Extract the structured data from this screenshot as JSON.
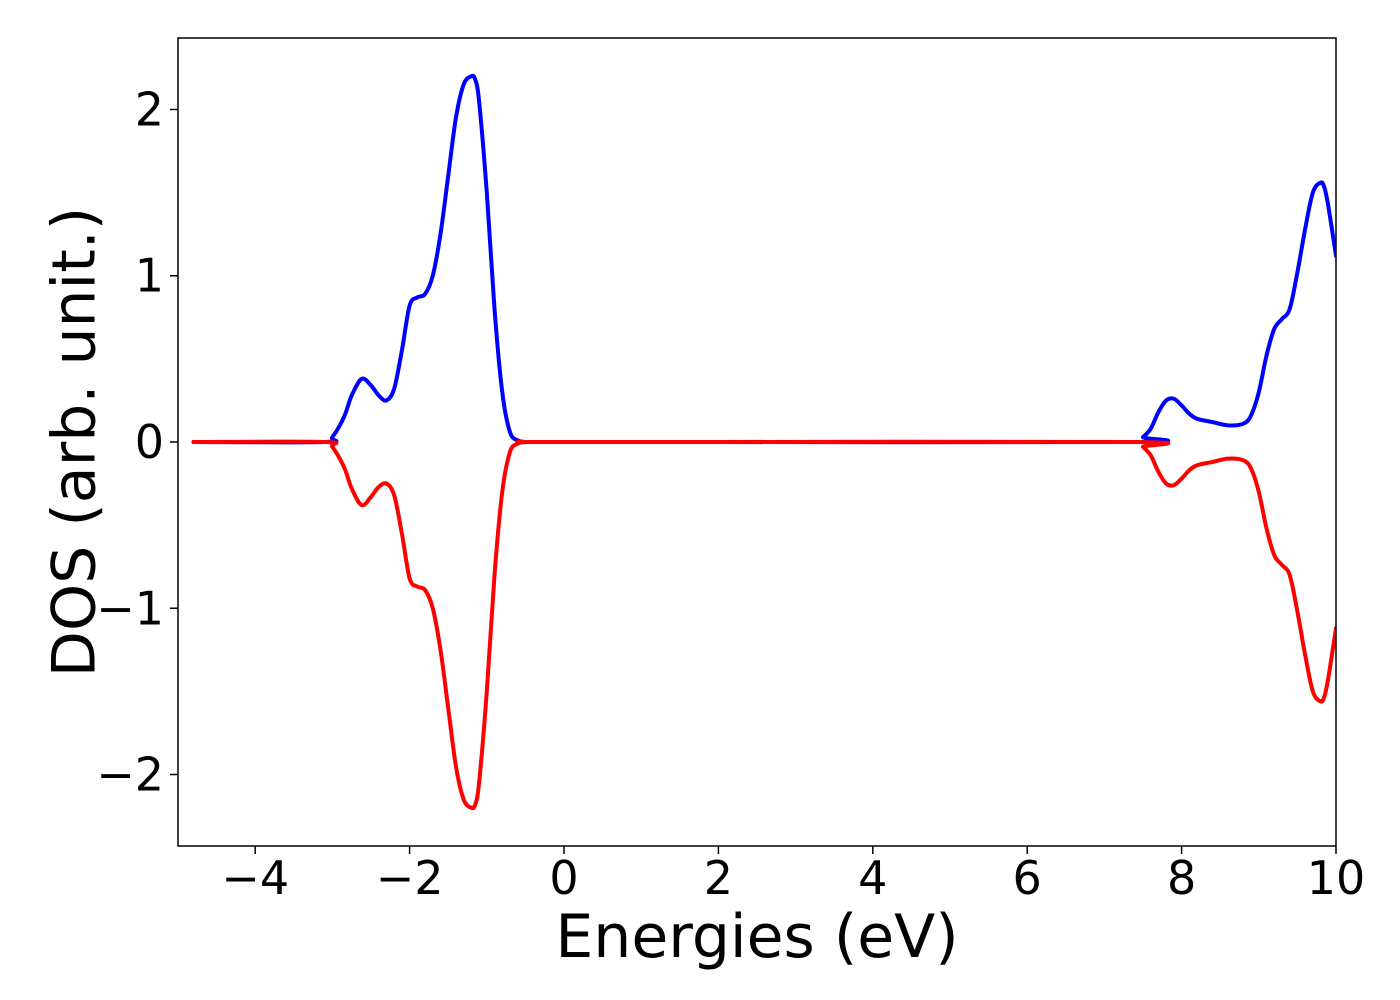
{
  "chart_data": {
    "type": "line",
    "title": "",
    "xlabel": "Energies (eV)",
    "ylabel": "DOS (arb. unit.)",
    "xlim": [
      -5,
      10
    ],
    "ylim": [
      -2.43,
      2.43
    ],
    "x_ticks": [
      -4,
      -2,
      0,
      2,
      4,
      6,
      8,
      10
    ],
    "x_tick_labels": [
      "−4",
      "−2",
      "0",
      "2",
      "4",
      "6",
      "8",
      "10"
    ],
    "y_ticks": [
      -2,
      -1,
      0,
      1,
      2
    ],
    "y_tick_labels": [
      "−2",
      "−1",
      "0",
      "1",
      "2"
    ],
    "grid": false,
    "series": [
      {
        "color": "#0000ff",
        "x": [
          -4.8,
          -3.1,
          -3.0,
          -2.85,
          -2.75,
          -2.62,
          -2.5,
          -2.4,
          -2.3,
          -2.2,
          -2.1,
          -2.0,
          -1.9,
          -1.8,
          -1.7,
          -1.6,
          -1.5,
          -1.4,
          -1.3,
          -1.2,
          -1.15,
          -1.1,
          -1.0,
          -0.9,
          -0.8,
          -0.7,
          -0.6,
          -0.5,
          -0.4,
          2.0,
          7.4,
          7.5,
          7.6,
          7.7,
          7.8,
          7.9,
          8.0,
          8.1,
          8.2,
          8.4,
          8.6,
          8.8,
          8.9,
          9.0,
          9.1,
          9.2,
          9.3,
          9.4,
          9.5,
          9.6,
          9.7,
          9.8,
          9.85,
          9.9,
          10.0
        ],
        "y": [
          0.0,
          0.0,
          0.03,
          0.15,
          0.28,
          0.38,
          0.34,
          0.28,
          0.25,
          0.32,
          0.55,
          0.82,
          0.87,
          0.89,
          1.0,
          1.25,
          1.6,
          1.95,
          2.15,
          2.2,
          2.18,
          2.05,
          1.5,
          0.8,
          0.3,
          0.06,
          0.01,
          0.0,
          0.0,
          0.0,
          0.0,
          0.03,
          0.08,
          0.18,
          0.25,
          0.26,
          0.22,
          0.17,
          0.14,
          0.12,
          0.1,
          0.11,
          0.16,
          0.3,
          0.52,
          0.68,
          0.74,
          0.8,
          1.02,
          1.28,
          1.5,
          1.56,
          1.53,
          1.42,
          1.12
        ]
      },
      {
        "color": "#ff0000",
        "x": [
          -4.8,
          -3.1,
          -3.0,
          -2.85,
          -2.75,
          -2.62,
          -2.5,
          -2.4,
          -2.3,
          -2.2,
          -2.1,
          -2.0,
          -1.9,
          -1.8,
          -1.7,
          -1.6,
          -1.5,
          -1.4,
          -1.3,
          -1.2,
          -1.15,
          -1.1,
          -1.0,
          -0.9,
          -0.8,
          -0.7,
          -0.6,
          -0.5,
          -0.4,
          2.0,
          7.4,
          7.5,
          7.6,
          7.7,
          7.8,
          7.9,
          8.0,
          8.1,
          8.2,
          8.4,
          8.6,
          8.8,
          8.9,
          9.0,
          9.1,
          9.2,
          9.3,
          9.4,
          9.5,
          9.6,
          9.7,
          9.8,
          9.85,
          9.9,
          10.0
        ],
        "y": [
          0.0,
          0.0,
          -0.03,
          -0.15,
          -0.28,
          -0.38,
          -0.33,
          -0.27,
          -0.25,
          -0.32,
          -0.55,
          -0.82,
          -0.87,
          -0.89,
          -1.0,
          -1.25,
          -1.6,
          -1.95,
          -2.15,
          -2.2,
          -2.18,
          -2.05,
          -1.5,
          -0.8,
          -0.3,
          -0.06,
          -0.01,
          0.0,
          0.0,
          0.0,
          0.0,
          -0.03,
          -0.08,
          -0.18,
          -0.25,
          -0.26,
          -0.22,
          -0.17,
          -0.14,
          -0.12,
          -0.1,
          -0.11,
          -0.16,
          -0.3,
          -0.52,
          -0.68,
          -0.74,
          -0.8,
          -1.02,
          -1.28,
          -1.5,
          -1.56,
          -1.53,
          -1.42,
          -1.12
        ]
      }
    ]
  }
}
